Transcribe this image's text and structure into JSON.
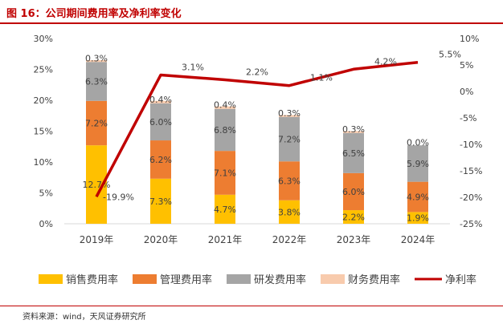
{
  "page_title": "图 16：公司期间费用率及净利率变化",
  "source": "资料来源：wind，天风证券研究所",
  "chart_data": {
    "type": "bar",
    "stacked": true,
    "title": "图 16：公司期间费用率及净利率变化",
    "categories": [
      "2019年",
      "2020年",
      "2021年",
      "2022年",
      "2023年",
      "2024年"
    ],
    "series": [
      {
        "name": "销售费用率",
        "axis": "left",
        "color": "#FFC000",
        "values": [
          12.7,
          7.3,
          4.7,
          3.8,
          2.2,
          1.9
        ],
        "labels": [
          "12.7%",
          "7.3%",
          "4.7%",
          "3.8%",
          "2.2%",
          "1.9%"
        ]
      },
      {
        "name": "管理费用率",
        "axis": "left",
        "color": "#ED7D31",
        "values": [
          7.2,
          6.2,
          7.1,
          6.3,
          6.0,
          4.9
        ],
        "labels": [
          "7.2%",
          "6.2%",
          "7.1%",
          "6.3%",
          "6.0%",
          "4.9%"
        ]
      },
      {
        "name": "研发费用率",
        "axis": "left",
        "color": "#A5A5A5",
        "values": [
          6.3,
          6.0,
          6.8,
          7.2,
          6.5,
          5.9
        ],
        "labels": [
          "6.3%",
          "6.0%",
          "6.8%",
          "7.2%",
          "6.5%",
          "5.9%"
        ]
      },
      {
        "name": "财务费用率",
        "axis": "left",
        "color": "#F8CBAD",
        "values": [
          0.3,
          0.4,
          0.4,
          0.3,
          0.3,
          0.0
        ],
        "labels": [
          "0.3%",
          "0.4%",
          "0.4%",
          "0.3%",
          "0.3%",
          "0.0%"
        ]
      },
      {
        "name": "净利率",
        "type": "line",
        "axis": "right",
        "color": "#C00000",
        "values": [
          -19.9,
          3.1,
          2.2,
          1.1,
          4.2,
          5.5
        ],
        "labels": [
          "-19.9%",
          "3.1%",
          "2.2%",
          "1.1%",
          "4.2%",
          "5.5%"
        ]
      }
    ],
    "y_left": {
      "min": 0,
      "max": 30,
      "ticks": [
        "0%",
        "5%",
        "10%",
        "15%",
        "20%",
        "25%",
        "30%"
      ]
    },
    "y_right": {
      "min": -25,
      "max": 10,
      "ticks": [
        "-25%",
        "-20%",
        "-15%",
        "-10%",
        "-5%",
        "0%",
        "5%",
        "10%"
      ]
    },
    "legend_position": "bottom",
    "grid": false
  }
}
